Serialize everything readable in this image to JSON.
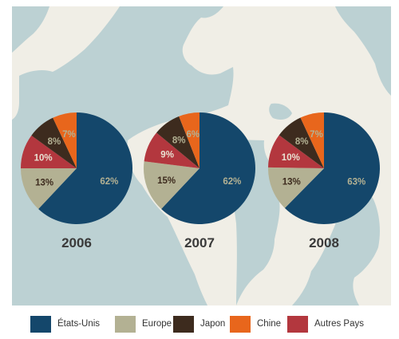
{
  "chart_data": {
    "type": "pie",
    "charts": [
      {
        "year": "2006",
        "slices": [
          {
            "category": "États-Unis",
            "value": 62,
            "label": "62%"
          },
          {
            "category": "Europe",
            "value": 13,
            "label": "13%"
          },
          {
            "category": "Autres Pays",
            "value": 10,
            "label": "10%"
          },
          {
            "category": "Japon",
            "value": 8,
            "label": "8%"
          },
          {
            "category": "Chine",
            "value": 7,
            "label": "7%"
          }
        ]
      },
      {
        "year": "2007",
        "slices": [
          {
            "category": "États-Unis",
            "value": 62,
            "label": "62%"
          },
          {
            "category": "Europe",
            "value": 15,
            "label": "15%"
          },
          {
            "category": "Autres Pays",
            "value": 9,
            "label": "9%"
          },
          {
            "category": "Japon",
            "value": 8,
            "label": "8%"
          },
          {
            "category": "Chine",
            "value": 6,
            "label": "6%"
          }
        ]
      },
      {
        "year": "2008",
        "slices": [
          {
            "category": "États-Unis",
            "value": 63,
            "label": "63%"
          },
          {
            "category": "Europe",
            "value": 13,
            "label": "13%"
          },
          {
            "category": "Autres Pays",
            "value": 10,
            "label": "10%"
          },
          {
            "category": "Japon",
            "value": 8,
            "label": "8%"
          },
          {
            "category": "Chine",
            "value": 7,
            "label": "7%"
          }
        ]
      }
    ],
    "legend_placement": "bottom"
  },
  "legend": [
    {
      "label": "États-Unis",
      "color": "#14476b"
    },
    {
      "label": "Europe",
      "color": "#b3b193"
    },
    {
      "label": "Japon",
      "color": "#3d2b1e"
    },
    {
      "label": "Chine",
      "color": "#e8661c"
    },
    {
      "label": "Autres Pays",
      "color": "#b3373e"
    }
  ],
  "label_colors": {
    "États-Unis": "#b3b193",
    "Europe": "#3d2b1e",
    "Japon": "#b3b193",
    "Chine": "#b3b193",
    "Autres Pays": "#e8e2d3"
  },
  "background": {
    "land_color": "#f0eee6",
    "ocean_color": "#bcd1d3",
    "content": "world-map"
  }
}
